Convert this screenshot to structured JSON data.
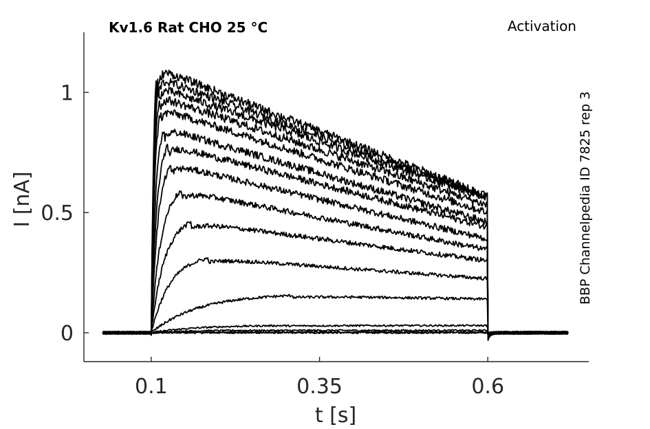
{
  "chart_data": {
    "type": "line",
    "title_left": "Kv1.6  Rat  CHO  25 °C",
    "title_right": "Activation",
    "side_label": "BBP Channelpedia ID 7825 rep 3",
    "xlabel": "t [s]",
    "ylabel": "I [nA]",
    "xlim": [
      0.0,
      0.75
    ],
    "ylim": [
      -0.12,
      1.25
    ],
    "xticks": [
      0.1,
      0.35,
      0.6
    ],
    "xtick_labels": [
      "0.1",
      "0.35",
      "0.6"
    ],
    "yticks": [
      0,
      0.5,
      1
    ],
    "ytick_labels": [
      "0",
      "0.5",
      "1"
    ],
    "grid": false,
    "stimulus": {
      "on": 0.1,
      "off": 0.6,
      "t_start": 0.028,
      "t_end": 0.72
    },
    "series": [
      {
        "peak": 0.0,
        "peak_t": 0.15,
        "end": 0.0
      },
      {
        "peak": 0.003,
        "peak_t": 0.25,
        "end": 0.005
      },
      {
        "peak": 0.01,
        "peak_t": 0.25,
        "end": 0.015
      },
      {
        "peak": 0.03,
        "peak_t": 0.3,
        "end": 0.035
      },
      {
        "peak": 0.155,
        "peak_t": 0.31,
        "end": 0.14
      },
      {
        "peak": 0.31,
        "peak_t": 0.185,
        "end": 0.225
      },
      {
        "peak": 0.46,
        "peak_t": 0.16,
        "end": 0.3
      },
      {
        "peak": 0.59,
        "peak_t": 0.145,
        "end": 0.345
      },
      {
        "peak": 0.7,
        "peak_t": 0.13,
        "end": 0.39
      },
      {
        "peak": 0.78,
        "peak_t": 0.125,
        "end": 0.44
      },
      {
        "peak": 0.85,
        "peak_t": 0.12,
        "end": 0.46
      },
      {
        "peak": 0.93,
        "peak_t": 0.115,
        "end": 0.5
      },
      {
        "peak": 0.98,
        "peak_t": 0.113,
        "end": 0.53
      },
      {
        "peak": 1.02,
        "peak_t": 0.111,
        "end": 0.56
      },
      {
        "peak": 1.06,
        "peak_t": 0.11,
        "end": 0.565
      },
      {
        "peak": 1.1,
        "peak_t": 0.108,
        "end": 0.57
      }
    ]
  }
}
